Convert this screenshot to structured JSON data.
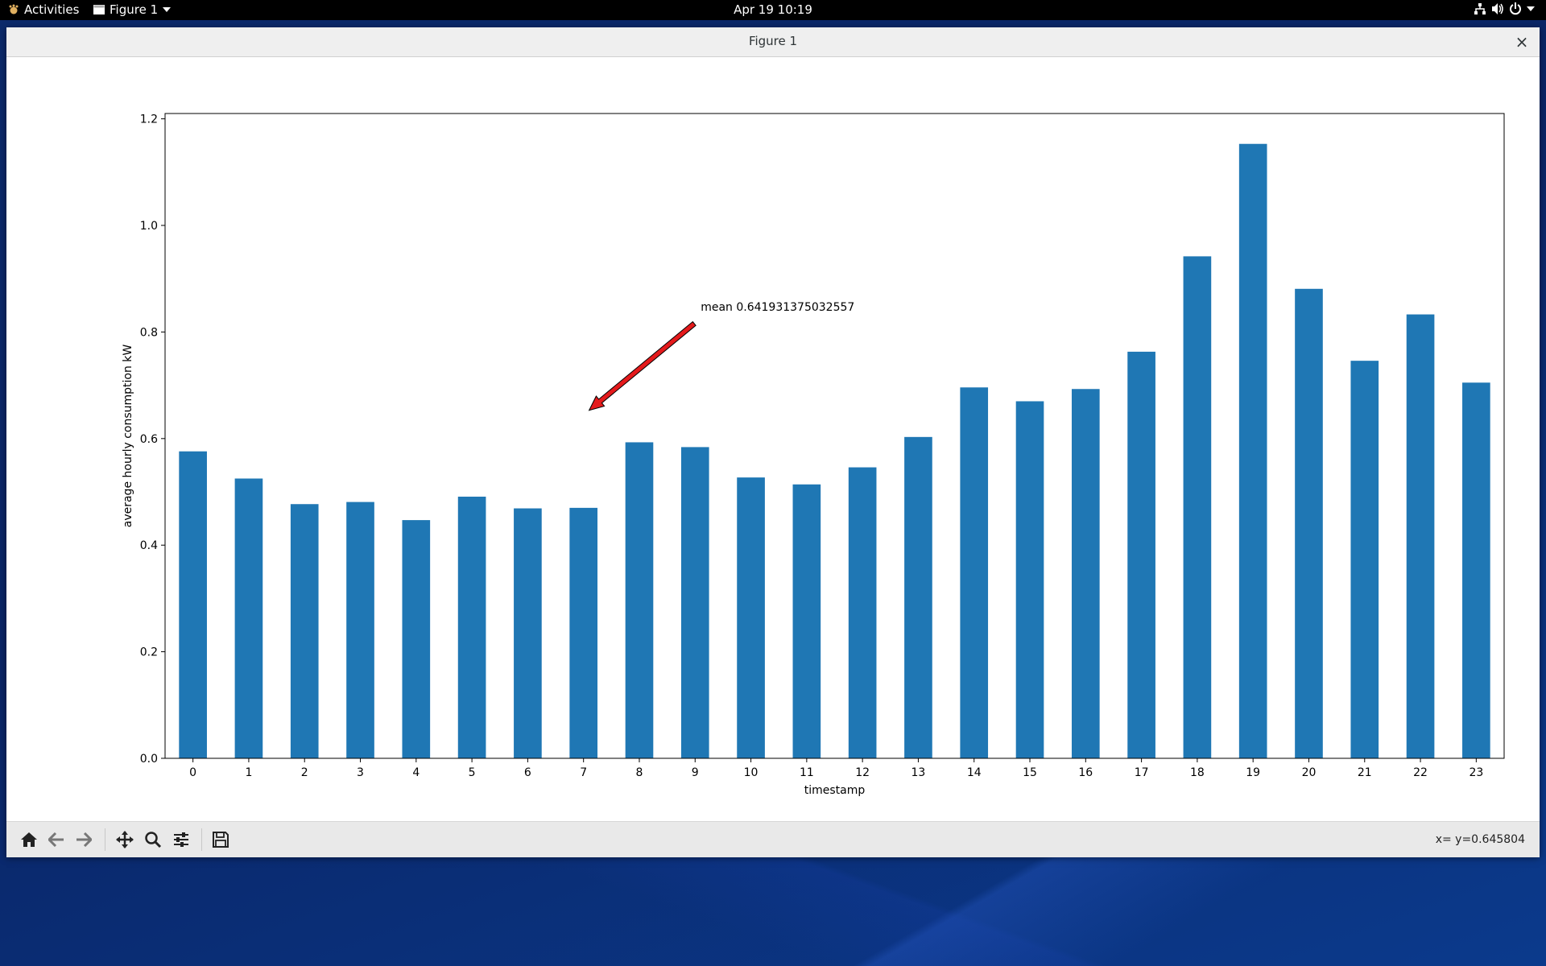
{
  "topbar": {
    "activities": "Activities",
    "app_menu": "Figure 1",
    "clock": "Apr 19  10:19",
    "icons": [
      "network-icon",
      "volume-icon",
      "power-icon",
      "chevron-down-icon"
    ]
  },
  "window": {
    "title": "Figure 1",
    "close_icon": "close-icon"
  },
  "toolbar": {
    "buttons": [
      "home-icon",
      "back-icon",
      "forward-icon",
      "pan-icon",
      "zoom-icon",
      "configure-icon",
      "save-icon"
    ],
    "coords": "x= y=0.645804"
  },
  "colors": {
    "bar": "#1f77b4",
    "arrow": "#e41a1c"
  },
  "chart_data": {
    "type": "bar",
    "categories": [
      "0",
      "1",
      "2",
      "3",
      "4",
      "5",
      "6",
      "7",
      "8",
      "9",
      "10",
      "11",
      "12",
      "13",
      "14",
      "15",
      "16",
      "17",
      "18",
      "19",
      "20",
      "21",
      "22",
      "23"
    ],
    "values": [
      0.576,
      0.525,
      0.477,
      0.481,
      0.447,
      0.491,
      0.469,
      0.47,
      0.593,
      0.584,
      0.527,
      0.514,
      0.546,
      0.603,
      0.696,
      0.67,
      0.693,
      0.763,
      0.942,
      1.153,
      0.881,
      0.746,
      0.833,
      0.705
    ],
    "xlabel": "timestamp",
    "ylabel": "average hourly consumption kW",
    "ylim": [
      0,
      1.21
    ],
    "yticks": [
      0.0,
      0.2,
      0.4,
      0.6,
      0.8,
      1.0,
      1.2
    ],
    "grid": false,
    "annotation": {
      "text": "mean 0.641931375032557",
      "xy": [
        7.1,
        0.653
      ],
      "xytext": [
        9.1,
        0.84
      ]
    }
  }
}
